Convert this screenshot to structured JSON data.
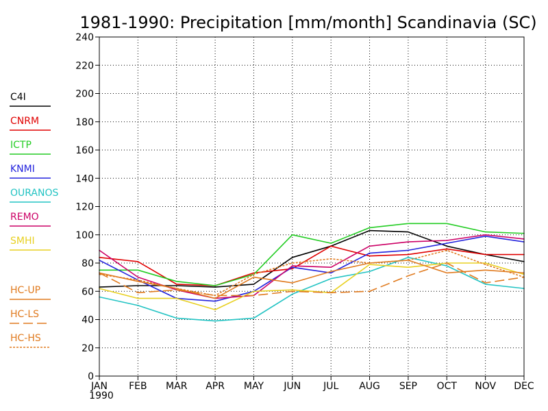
{
  "chart_data": {
    "type": "line",
    "title": "1981-1990: Precipitation [mm/month] Scandinavia (SC)",
    "categories": [
      "JAN",
      "FEB",
      "MAR",
      "APR",
      "MAY",
      "JUN",
      "JUL",
      "AUG",
      "SEP",
      "OCT",
      "NOV",
      "DEC"
    ],
    "x_sublabel": "1990",
    "ylim": [
      0,
      240
    ],
    "yticks": [
      0,
      20,
      40,
      60,
      80,
      100,
      120,
      140,
      160,
      180,
      200,
      220,
      240
    ],
    "grid": true,
    "legend_placement": "left",
    "series": [
      {
        "name": "C4I",
        "color": "#000000",
        "dash": "solid",
        "values": [
          63,
          64,
          64,
          63,
          65,
          84,
          92,
          103,
          102,
          92,
          86,
          81
        ]
      },
      {
        "name": "CNRM",
        "color": "#e00000",
        "dash": "solid",
        "values": [
          84,
          81,
          65,
          64,
          73,
          76,
          92,
          85,
          86,
          90,
          86,
          86
        ]
      },
      {
        "name": "ICTP",
        "color": "#22cc22",
        "dash": "solid",
        "values": [
          75,
          75,
          67,
          64,
          72,
          100,
          94,
          105,
          108,
          108,
          102,
          101
        ]
      },
      {
        "name": "KNMI",
        "color": "#2222dd",
        "dash": "solid",
        "values": [
          82,
          68,
          55,
          53,
          60,
          77,
          73,
          87,
          89,
          94,
          99,
          95
        ]
      },
      {
        "name": "OURANOS",
        "color": "#22c3c3",
        "dash": "solid",
        "values": [
          56,
          50,
          41,
          39,
          41,
          58,
          69,
          74,
          84,
          78,
          65,
          62
        ]
      },
      {
        "name": "REMO",
        "color": "#cc0066",
        "dash": "solid",
        "values": [
          89,
          70,
          61,
          55,
          57,
          78,
          77,
          92,
          95,
          96,
          100,
          97
        ]
      },
      {
        "name": "SMHI",
        "color": "#e8d020",
        "dash": "solid",
        "values": [
          62,
          55,
          55,
          47,
          60,
          61,
          59,
          79,
          77,
          80,
          80,
          72
        ]
      },
      {
        "name": "HC-UP",
        "color": "#e07a1e",
        "dash": "solid",
        "values": [
          73,
          67,
          62,
          55,
          70,
          66,
          74,
          80,
          82,
          73,
          75,
          73
        ]
      },
      {
        "name": "HC-LS",
        "color": "#e07a1e",
        "dash": "longdash",
        "values": [
          73,
          59,
          61,
          57,
          57,
          60,
          59,
          60,
          71,
          80,
          66,
          70
        ]
      },
      {
        "name": "HC-HS",
        "color": "#e07a1e",
        "dash": "dotted",
        "values": [
          72,
          68,
          62,
          57,
          72,
          80,
          83,
          80,
          82,
          89,
          79,
          70
        ]
      }
    ]
  }
}
